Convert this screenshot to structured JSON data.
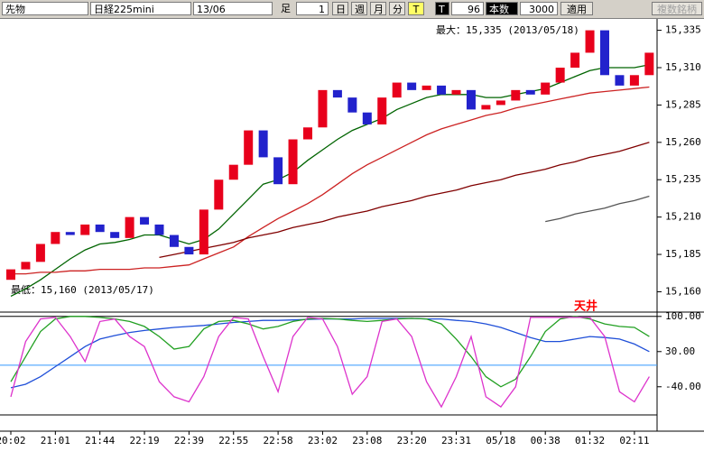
{
  "toolbar": {
    "market": "先物",
    "symbol": "日経225mini",
    "contract": "13/06",
    "bar_label": "足",
    "bar_size": "1",
    "day": "日",
    "week": "週",
    "month": "月",
    "minute": "分",
    "tick": "T",
    "t_label": "T",
    "t_count": "96",
    "count_label": "本数",
    "count": "3000",
    "apply": "適用",
    "multi": "複数銘柄"
  },
  "chart_data": [
    {
      "type": "candlestick",
      "categories": [
        "20:02",
        null,
        null,
        "21:01",
        null,
        null,
        "21:44",
        null,
        null,
        "22:19",
        null,
        null,
        "22:39",
        null,
        null,
        "22:55",
        null,
        null,
        "22:58",
        null,
        null,
        "23:02",
        null,
        null,
        "23:08",
        null,
        null,
        "23:20",
        null,
        null,
        "23:31",
        null,
        null,
        "05/18",
        null,
        null,
        "00:38",
        null,
        null,
        "01:32",
        null,
        null,
        "02:11",
        null
      ],
      "open": [
        15168,
        15175,
        15180,
        15192,
        15200,
        15198,
        15205,
        15200,
        15196,
        15210,
        15205,
        15198,
        15190,
        15185,
        15215,
        15235,
        15245,
        15268,
        15250,
        15232,
        15262,
        15270,
        15295,
        15290,
        15280,
        15272,
        15290,
        15300,
        15295,
        15298,
        15292,
        15295,
        15282,
        15285,
        15288,
        15295,
        15292,
        15300,
        15310,
        15320,
        15335,
        15305,
        15298,
        15305
      ],
      "close": [
        15175,
        15180,
        15192,
        15200,
        15198,
        15205,
        15200,
        15196,
        15210,
        15205,
        15198,
        15190,
        15185,
        15215,
        15235,
        15245,
        15268,
        15250,
        15232,
        15262,
        15270,
        15295,
        15290,
        15280,
        15272,
        15290,
        15300,
        15295,
        15298,
        15292,
        15295,
        15282,
        15285,
        15288,
        15295,
        15292,
        15300,
        15310,
        15320,
        15335,
        15305,
        15298,
        15305,
        15320
      ],
      "up_color": "#e8001c",
      "down_color": "#2222cc",
      "series": [
        {
          "color": "#006400",
          "values": [
            15157,
            15162,
            15168,
            15175,
            15182,
            15188,
            15192,
            15193,
            15195,
            15198,
            15198,
            15195,
            15192,
            15195,
            15202,
            15212,
            15222,
            15232,
            15235,
            15240,
            15248,
            15255,
            15262,
            15268,
            15272,
            15276,
            15282,
            15286,
            15290,
            15292,
            15292,
            15292,
            15290,
            15290,
            15292,
            15294,
            15296,
            15300,
            15304,
            15308,
            15310,
            15310,
            15310,
            15312
          ]
        },
        {
          "color": "#cc2222",
          "values": [
            15172,
            15172,
            15173,
            15173,
            15174,
            15174,
            15175,
            15175,
            15175,
            15176,
            15176,
            15177,
            15178,
            15182,
            15186,
            15190,
            15197,
            15203,
            15209,
            15214,
            15219,
            15225,
            15232,
            15239,
            15245,
            15250,
            15255,
            15260,
            15265,
            15269,
            15272,
            15275,
            15278,
            15280,
            15283,
            15285,
            15287,
            15289,
            15291,
            15293,
            15294,
            15295,
            15296,
            15297
          ]
        },
        {
          "color": "#800000",
          "values": [
            null,
            null,
            null,
            null,
            null,
            null,
            null,
            null,
            null,
            null,
            15183,
            15185,
            15187,
            15189,
            15191,
            15193,
            15196,
            15198,
            15200,
            15203,
            15205,
            15207,
            15210,
            15212,
            15214,
            15217,
            15219,
            15221,
            15224,
            15226,
            15228,
            15231,
            15233,
            15235,
            15238,
            15240,
            15242,
            15245,
            15247,
            15250,
            15252,
            15254,
            15257,
            15260
          ]
        },
        {
          "color": "#555555",
          "values": [
            null,
            null,
            null,
            null,
            null,
            null,
            null,
            null,
            null,
            null,
            null,
            null,
            null,
            null,
            null,
            null,
            null,
            null,
            null,
            null,
            null,
            null,
            null,
            null,
            null,
            null,
            null,
            null,
            null,
            null,
            null,
            null,
            null,
            null,
            null,
            null,
            15207,
            15209,
            15212,
            15214,
            15216,
            15219,
            15221,
            15224
          ]
        }
      ],
      "ylim": [
        15147,
        15342
      ],
      "yticks": [
        {
          "value": 15335,
          "label": "15,335"
        },
        {
          "value": 15310,
          "label": "15,310"
        },
        {
          "value": 15285,
          "label": "15,285"
        },
        {
          "value": 15260,
          "label": "15,260"
        },
        {
          "value": 15235,
          "label": "15,235"
        },
        {
          "value": 15210,
          "label": "15,210"
        },
        {
          "value": 15185,
          "label": "15,185"
        },
        {
          "value": 15160,
          "label": "15,160"
        }
      ],
      "max_label": "最大：15,335 (2013/05/18)",
      "min_label": "最低：15,160 (2013/05/17)"
    },
    {
      "type": "line",
      "series": [
        {
          "color": "#1f4fd8",
          "values": [
            -42,
            -35,
            -20,
            0,
            20,
            40,
            55,
            62,
            68,
            72,
            75,
            78,
            80,
            82,
            85,
            88,
            90,
            92,
            92,
            93,
            94,
            95,
            95,
            95,
            96,
            96,
            96,
            96,
            95,
            95,
            92,
            90,
            85,
            78,
            68,
            58,
            50,
            50,
            55,
            60,
            58,
            55,
            45,
            30
          ]
        },
        {
          "color": "#22a022",
          "values": [
            -30,
            20,
            70,
            95,
            100,
            100,
            98,
            95,
            90,
            80,
            60,
            35,
            40,
            75,
            90,
            92,
            85,
            75,
            80,
            90,
            95,
            96,
            95,
            92,
            90,
            92,
            95,
            96,
            95,
            85,
            55,
            20,
            -20,
            -40,
            -25,
            20,
            70,
            95,
            100,
            95,
            85,
            80,
            78,
            60
          ]
        },
        {
          "color": "#dd33cc",
          "values": [
            -60,
            50,
            95,
            98,
            60,
            10,
            90,
            95,
            60,
            40,
            -30,
            -60,
            -70,
            -20,
            60,
            98,
            95,
            20,
            -50,
            60,
            98,
            95,
            40,
            -55,
            -20,
            90,
            95,
            60,
            -30,
            -80,
            -20,
            60,
            -60,
            -80,
            -40,
            98,
            98,
            98,
            98,
            98,
            60,
            -50,
            -70,
            -20
          ]
        }
      ],
      "ref_lines": [
        {
          "value": 100,
          "color": "#000000"
        },
        {
          "value": 3,
          "color": "#3399ff"
        },
        {
          "value": -96,
          "color": "#000000"
        }
      ],
      "ylim": [
        -114,
        105
      ],
      "yticks": [
        {
          "value": 100,
          "label": "100.00"
        },
        {
          "value": 30,
          "label": "30.00"
        },
        {
          "value": -40,
          "label": "-40.00"
        }
      ],
      "annotation": "天井"
    }
  ]
}
